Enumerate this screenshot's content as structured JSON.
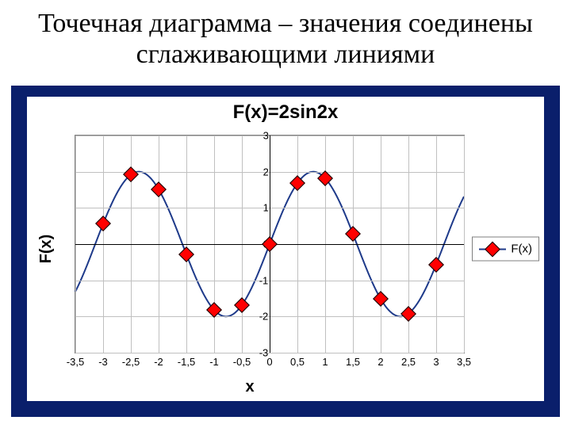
{
  "slide": {
    "title": "Точечная диаграмма – значения соединены сглаживающими линиями"
  },
  "chart": {
    "type": "scatter-smooth-line",
    "title": "F(x)=2sin2x",
    "xlabel": "x",
    "ylabel": "F(x)",
    "xlim": [
      -3.5,
      3.5
    ],
    "ylim": [
      -3,
      3
    ],
    "x_ticks": [
      -3.5,
      -3,
      -2.5,
      -2,
      -1.5,
      -1,
      -0.5,
      0,
      0.5,
      1,
      1.5,
      2,
      2.5,
      3,
      3.5
    ],
    "x_tick_labels": [
      "-3,5",
      "-3",
      "-2,5",
      "-2",
      "-1,5",
      "-1",
      "-0,5",
      "0",
      "0,5",
      "1",
      "1,5",
      "2",
      "2,5",
      "3",
      "3,5"
    ],
    "y_ticks": [
      -3,
      -2,
      -1,
      0,
      1,
      2,
      3
    ],
    "y_tick_labels": [
      "-3",
      "-2",
      "-1",
      "0",
      "1",
      "2",
      "3"
    ],
    "grid_color": "#c0c0c0",
    "axis_color": "#000000",
    "background_color": "#ffffff",
    "border_color": "#7f7f7f",
    "legend_label": "F(x)",
    "series": {
      "line_color": "#1e3a8a",
      "line_width": 2,
      "marker_fill": "#ff0000",
      "marker_border": "#000000",
      "marker_size": 12,
      "x": [
        -3,
        -2.5,
        -2,
        -1.5,
        -1,
        -0.5,
        0,
        0.5,
        1,
        1.5,
        2,
        2.5,
        3
      ],
      "y": [
        0.559,
        1.918,
        1.514,
        -0.282,
        -1.819,
        -1.683,
        0,
        1.683,
        1.819,
        0.282,
        -1.514,
        -1.918,
        -0.559
      ]
    },
    "panel_bg": "#0a1f6b"
  }
}
